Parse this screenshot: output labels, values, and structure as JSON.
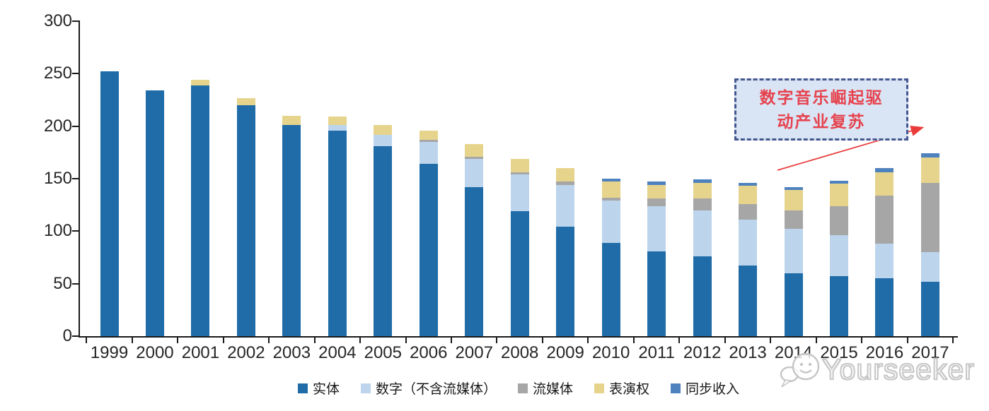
{
  "chart_data": {
    "type": "bar",
    "stacked": true,
    "title": "",
    "xlabel": "",
    "ylabel": "",
    "ylim": [
      0,
      300
    ],
    "yticks": [
      0,
      50,
      100,
      150,
      200,
      250,
      300
    ],
    "grid": false,
    "legend_position": "bottom",
    "categories": [
      "1999",
      "2000",
      "2001",
      "2002",
      "2003",
      "2004",
      "2005",
      "2006",
      "2007",
      "2008",
      "2009",
      "2010",
      "2011",
      "2012",
      "2013",
      "2014",
      "2015",
      "2016",
      "2017"
    ],
    "series": [
      {
        "name": "实体",
        "color": "#1F6CA8",
        "values": [
          252,
          234,
          239,
          220,
          201,
          196,
          181,
          164,
          142,
          119,
          104,
          89,
          81,
          76,
          67,
          60,
          57,
          55,
          52
        ]
      },
      {
        "name": "数字（不含流媒体）",
        "color": "#BCD5EC",
        "values": [
          0,
          0,
          0,
          0,
          0,
          5,
          11,
          21,
          27,
          35,
          40,
          40,
          43,
          44,
          44,
          42,
          39,
          33,
          28
        ]
      },
      {
        "name": "流媒体",
        "color": "#A6A6A6",
        "values": [
          0,
          0,
          0,
          0,
          0,
          0,
          0,
          2,
          2,
          2,
          3,
          3,
          7,
          11,
          15,
          18,
          28,
          46,
          66
        ]
      },
      {
        "name": "表演权",
        "color": "#E6D48D",
        "values": [
          0,
          0,
          5,
          7,
          9,
          8,
          9,
          9,
          12,
          13,
          13,
          15,
          13,
          15,
          17,
          19,
          21,
          22,
          24
        ]
      },
      {
        "name": "同步收入",
        "color": "#4E82BE",
        "values": [
          0,
          0,
          0,
          0,
          0,
          0,
          0,
          0,
          0,
          0,
          0,
          3,
          3,
          3,
          3,
          3,
          3,
          4,
          4
        ]
      }
    ]
  },
  "annotation": {
    "line1": "数字音乐崛起驱",
    "line2": "动产业复苏",
    "text_color": "#E6424E",
    "box_fill": "#D9E5F4",
    "box_border": "#44568F",
    "arrow_color": "#EA3B3B"
  },
  "watermark": {
    "text": "Yourseeker",
    "logo": "chat-bubble-smiley-logo",
    "color": "#C6C6C6"
  }
}
